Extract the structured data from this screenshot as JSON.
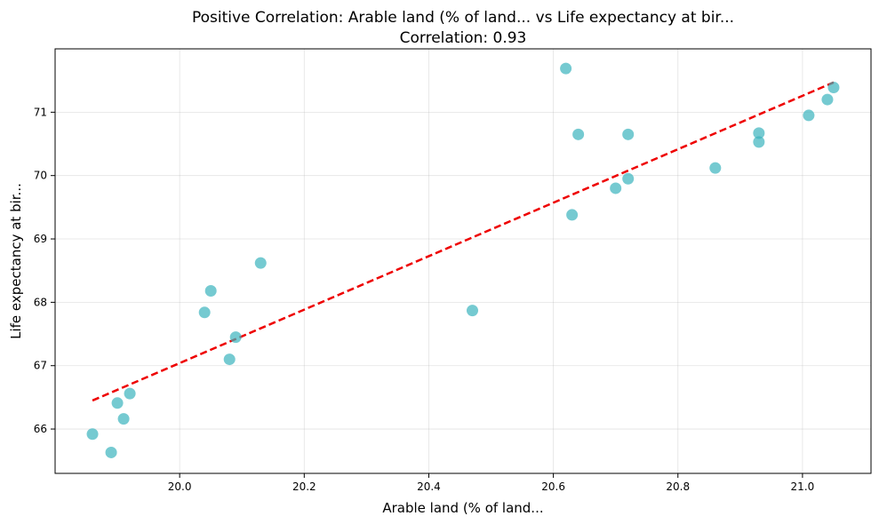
{
  "chart_data": {
    "type": "scatter",
    "title": "Positive Correlation: Arable land (% of land... vs Life expectancy at bir...",
    "subtitle": "Correlation: 0.93",
    "xlabel": "Arable land (% of land...",
    "ylabel": "Life expectancy at bir...",
    "xlim": [
      19.8,
      21.11
    ],
    "ylim": [
      65.3,
      72.0
    ],
    "xticks": [
      "20.0",
      "20.2",
      "20.4",
      "20.6",
      "20.8",
      "21.0"
    ],
    "yticks": [
      "66",
      "67",
      "68",
      "69",
      "70",
      "71"
    ],
    "grid": true,
    "colors": {
      "points": "#3bb3bd",
      "fit_line": "#ee0000"
    },
    "points": [
      {
        "x": 19.86,
        "y": 65.92
      },
      {
        "x": 19.89,
        "y": 65.63
      },
      {
        "x": 19.9,
        "y": 66.41
      },
      {
        "x": 19.91,
        "y": 66.16
      },
      {
        "x": 19.92,
        "y": 66.56
      },
      {
        "x": 20.04,
        "y": 67.84
      },
      {
        "x": 20.05,
        "y": 68.18
      },
      {
        "x": 20.08,
        "y": 67.1
      },
      {
        "x": 20.09,
        "y": 67.45
      },
      {
        "x": 20.13,
        "y": 68.62
      },
      {
        "x": 20.47,
        "y": 67.87
      },
      {
        "x": 20.62,
        "y": 71.69
      },
      {
        "x": 20.63,
        "y": 69.38
      },
      {
        "x": 20.64,
        "y": 70.65
      },
      {
        "x": 20.7,
        "y": 69.8
      },
      {
        "x": 20.72,
        "y": 69.95
      },
      {
        "x": 20.72,
        "y": 70.65
      },
      {
        "x": 20.86,
        "y": 70.12
      },
      {
        "x": 20.93,
        "y": 70.53
      },
      {
        "x": 20.93,
        "y": 70.67
      },
      {
        "x": 21.01,
        "y": 70.95
      },
      {
        "x": 21.04,
        "y": 71.2
      },
      {
        "x": 21.05,
        "y": 71.39
      }
    ],
    "fit_line": [
      {
        "x": 19.86,
        "y": 66.45
      },
      {
        "x": 21.05,
        "y": 71.47
      }
    ]
  }
}
